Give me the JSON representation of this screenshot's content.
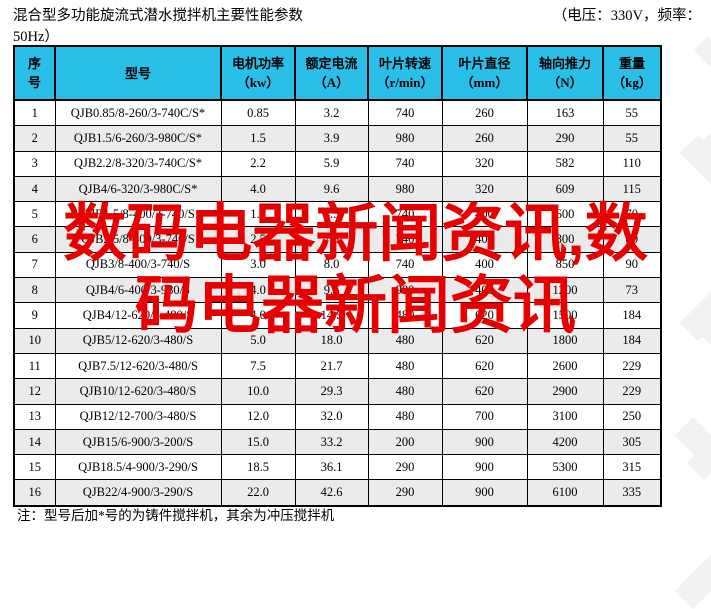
{
  "header": {
    "title": "混合型多功能旋流式潜水搅拌机主要性能参数",
    "voltage_note_right": "（电压：330V，频率：",
    "voltage_note_cont": "50Hz）"
  },
  "table": {
    "columns": [
      {
        "line1": "序",
        "line2": "号"
      },
      {
        "line1": "型号",
        "line2": ""
      },
      {
        "line1": "电机功率",
        "line2": "（kw）"
      },
      {
        "line1": "额定电流",
        "line2": "（A）"
      },
      {
        "line1": "叶片转速",
        "line2": "（r/min）"
      },
      {
        "line1": "叶片直径",
        "line2": "（mm）"
      },
      {
        "line1": "轴向推力",
        "line2": "（N）"
      },
      {
        "line1": "重量",
        "line2": "（kg）"
      }
    ],
    "rows": [
      [
        "1",
        "QJB0.85/8-260/3-740C/S*",
        "0.85",
        "3.2",
        "740",
        "260",
        "163",
        "55"
      ],
      [
        "2",
        "QJB1.5/6-260/3-980C/S*",
        "1.5",
        "3.9",
        "980",
        "260",
        "290",
        "55"
      ],
      [
        "3",
        "QJB2.2/8-320/3-740C/S*",
        "2.2",
        "5.9",
        "740",
        "320",
        "582",
        "110"
      ],
      [
        "4",
        "QJB4/6-320/3-980C/S*",
        "4.0",
        "9.6",
        "980",
        "320",
        "609",
        "115"
      ],
      [
        "5",
        "QJB1.5/8-400/3-740/S",
        "1.5",
        "4.5",
        "740",
        "400",
        "600",
        "70"
      ],
      [
        "6",
        "QJB2.5/8-400/3-740/S",
        "2.5",
        "7.3",
        "740",
        "400",
        "800",
        "80"
      ],
      [
        "7",
        "QJB3/8-400/3-740/S",
        "3.0",
        "8.0",
        "740",
        "400",
        "850",
        "90"
      ],
      [
        "8",
        "QJB4/6-400/3-980/S",
        "4.0",
        "9.6",
        "980",
        "400",
        "1200",
        "73"
      ],
      [
        "9",
        "QJB4/12-620/3-480/S",
        "4.0",
        "14.5",
        "480",
        "620",
        "1500",
        "184"
      ],
      [
        "10",
        "QJB5/12-620/3-480/S",
        "5.0",
        "18.0",
        "480",
        "620",
        "1800",
        "184"
      ],
      [
        "11",
        "QJB7.5/12-620/3-480/S",
        "7.5",
        "21.7",
        "480",
        "620",
        "2600",
        "229"
      ],
      [
        "12",
        "QJB10/12-620/3-480/S",
        "10.0",
        "29.3",
        "480",
        "620",
        "2900",
        "229"
      ],
      [
        "13",
        "QJB12/12-700/3-480/S",
        "12.0",
        "32.0",
        "480",
        "700",
        "3100",
        "250"
      ],
      [
        "14",
        "QJB15/6-900/3-200/S",
        "15.0",
        "33.2",
        "200",
        "900",
        "4200",
        "305"
      ],
      [
        "15",
        "QJB18.5/4-900/3-290/S",
        "18.5",
        "36.1",
        "290",
        "900",
        "5300",
        "315"
      ],
      [
        "16",
        "QJB22/4-900/3-290/S",
        "22.0",
        "42.6",
        "290",
        "900",
        "6100",
        "335"
      ]
    ]
  },
  "footer": {
    "note": "注：型号后加*号的为铸件搅拌机，其余为冲压搅拌机"
  },
  "overlay": {
    "line1": "数码电器新闻资讯,数",
    "line2": "码电器新闻资讯"
  },
  "colors": {
    "header_bg": "#29bfe9",
    "row_alt": "#ebebeb",
    "border": "#000000",
    "overlay_red": "#e60000",
    "watermark_gray": "#f2f2f2"
  }
}
